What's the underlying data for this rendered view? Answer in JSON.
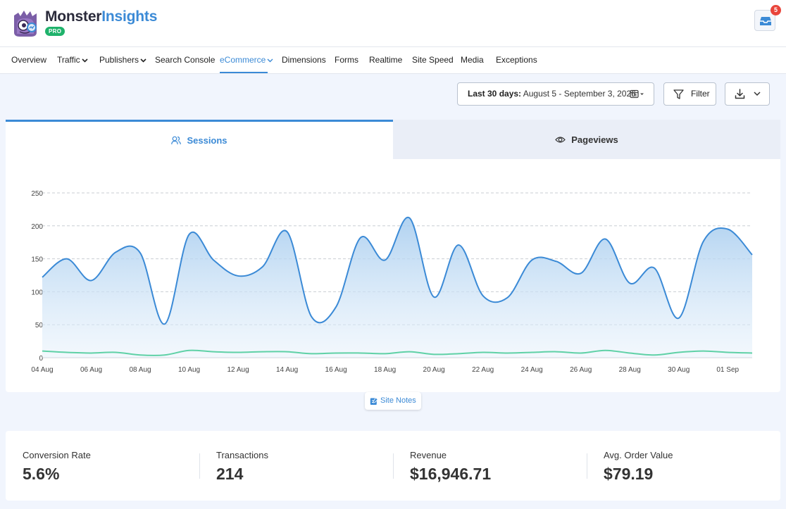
{
  "header": {
    "brand_part1": "Monster",
    "brand_part2": "Insights",
    "badge": "PRO",
    "notification_count": "5"
  },
  "nav": {
    "items": [
      {
        "label": "Overview",
        "dropdown": false
      },
      {
        "label": "Traffic",
        "dropdown": true
      },
      {
        "label": "Publishers",
        "dropdown": true
      },
      {
        "label": "Search Console",
        "dropdown": false
      },
      {
        "label": "eCommerce",
        "dropdown": true,
        "active": true
      },
      {
        "label": "Dimensions",
        "dropdown": false
      },
      {
        "label": "Forms",
        "dropdown": false
      },
      {
        "label": "Realtime",
        "dropdown": false
      },
      {
        "label": "Site Speed",
        "dropdown": false
      },
      {
        "label": "Media",
        "dropdown": false
      },
      {
        "label": "Exceptions",
        "dropdown": false
      }
    ]
  },
  "toolbar": {
    "date_range_label": "Last 30 days:",
    "date_range_value": "August 5 - September 3, 2026",
    "filter_label": "Filter"
  },
  "tabs": {
    "sessions": "Sessions",
    "pageviews": "Pageviews"
  },
  "site_notes": "Site Notes",
  "stats": [
    {
      "label": "Conversion Rate",
      "value": "5.6%"
    },
    {
      "label": "Transactions",
      "value": "214"
    },
    {
      "label": "Revenue",
      "value": "$16,946.71"
    },
    {
      "label": "Avg. Order Value",
      "value": "$79.19"
    }
  ],
  "colors": {
    "accent": "#3b8ad6",
    "secondary_line": "#5fd1a6",
    "badge_green": "#1fb26b",
    "notification_red": "#e9453b"
  },
  "chart_data": {
    "type": "area",
    "x": [
      "04 Aug",
      "05 Aug",
      "06 Aug",
      "07 Aug",
      "08 Aug",
      "09 Aug",
      "10 Aug",
      "11 Aug",
      "12 Aug",
      "13 Aug",
      "14 Aug",
      "15 Aug",
      "16 Aug",
      "17 Aug",
      "18 Aug",
      "19 Aug",
      "20 Aug",
      "21 Aug",
      "22 Aug",
      "23 Aug",
      "24 Aug",
      "25 Aug",
      "26 Aug",
      "27 Aug",
      "28 Aug",
      "29 Aug",
      "30 Aug",
      "31 Aug",
      "01 Sep",
      "02 Sep"
    ],
    "tick_labels": [
      "04 Aug",
      "06 Aug",
      "08 Aug",
      "10 Aug",
      "12 Aug",
      "14 Aug",
      "16 Aug",
      "18 Aug",
      "20 Aug",
      "22 Aug",
      "24 Aug",
      "26 Aug",
      "28 Aug",
      "30 Aug",
      "01 Sep"
    ],
    "series": [
      {
        "values": [
          122,
          150,
          117,
          160,
          159,
          51,
          187,
          148,
          124,
          138,
          191,
          62,
          77,
          182,
          148,
          212,
          92,
          171,
          94,
          91,
          148,
          146,
          128,
          180,
          113,
          136,
          60,
          176,
          195,
          156
        ]
      },
      {
        "values": [
          10,
          8,
          7,
          8,
          4,
          4,
          11,
          9,
          8,
          9,
          9,
          6,
          7,
          7,
          6,
          9,
          5,
          6,
          8,
          7,
          8,
          9,
          7,
          11,
          7,
          4,
          8,
          10,
          8,
          7
        ]
      }
    ],
    "yticks": [
      0,
      50,
      100,
      150,
      200,
      250
    ],
    "ylim": [
      0,
      250
    ],
    "grid": true
  }
}
